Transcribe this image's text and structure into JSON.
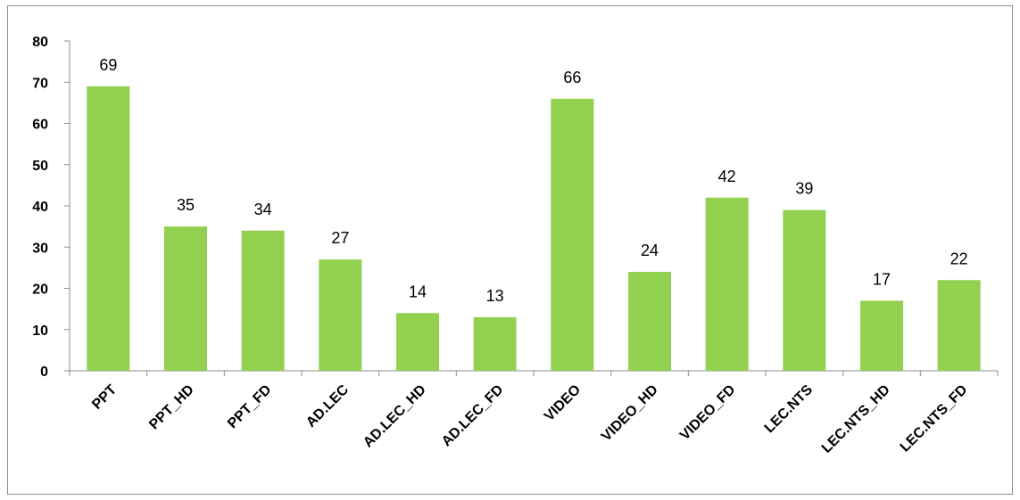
{
  "chart_data": {
    "type": "bar",
    "categories": [
      "PPT",
      "PPT_HD",
      "PPT_FD",
      "AD.LEC",
      "AD.LEC_HD",
      "AD.LEC_FD",
      "VIDEO",
      "VIDEO_HD",
      "VIDEO_FD",
      "LEC.NTS",
      "LEC.NTS_HD",
      "LEC.NTS_FD"
    ],
    "values": [
      69,
      35,
      34,
      27,
      14,
      13,
      66,
      24,
      42,
      39,
      17,
      22
    ],
    "data_labels": [
      "69",
      "35",
      "34",
      "27",
      "14",
      "13",
      "66",
      "24",
      "42",
      "39",
      "17",
      "22"
    ],
    "y_ticks": [
      "0",
      "10",
      "20",
      "30",
      "40",
      "50",
      "60",
      "70",
      "80"
    ],
    "ylim": [
      0,
      80
    ],
    "grid": false,
    "legend": "none",
    "bar_color": "#92d050",
    "axis_color": "#8c8c8c"
  }
}
